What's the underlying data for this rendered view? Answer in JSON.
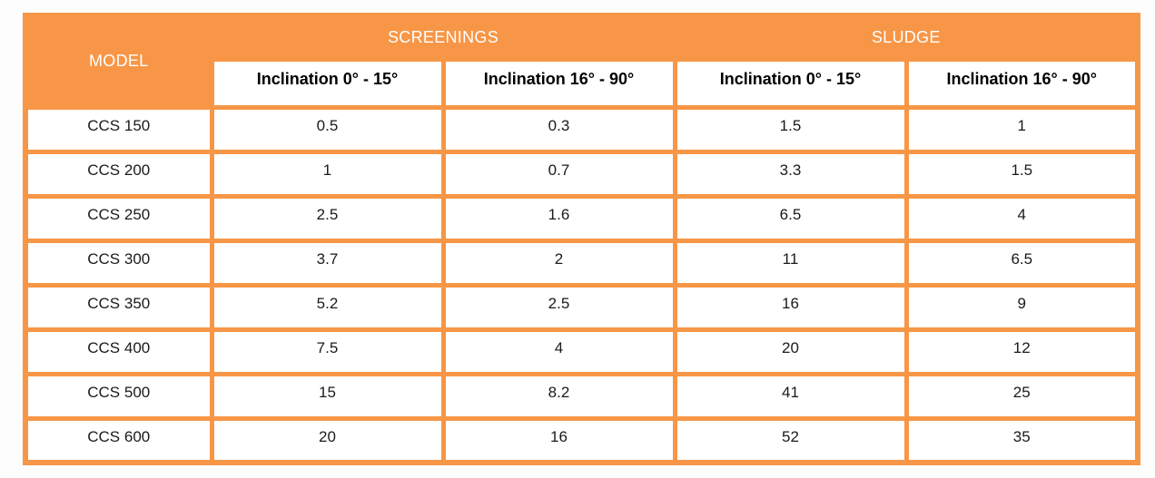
{
  "accent_color": "#F79646",
  "cell_background": "#ffffff",
  "table": {
    "model_header": "MODEL",
    "group_headers": [
      {
        "label": "SCREENINGS"
      },
      {
        "label": "SLUDGE"
      }
    ],
    "sub_headers": [
      "Inclination 0° - 15°",
      "Inclination 16° - 90°",
      "Inclination 0° - 15°",
      "Inclination 16° - 90°"
    ],
    "rows": [
      {
        "model": "CCS 150",
        "values": [
          "0.5",
          "0.3",
          "1.5",
          "1"
        ]
      },
      {
        "model": "CCS 200",
        "values": [
          "1",
          "0.7",
          "3.3",
          "1.5"
        ]
      },
      {
        "model": "CCS 250",
        "values": [
          "2.5",
          "1.6",
          "6.5",
          "4"
        ]
      },
      {
        "model": "CCS 300",
        "values": [
          "3.7",
          "2",
          "11",
          "6.5"
        ]
      },
      {
        "model": "CCS 350",
        "values": [
          "5.2",
          "2.5",
          "16",
          "9"
        ]
      },
      {
        "model": "CCS 400",
        "values": [
          "7.5",
          "4",
          "20",
          "12"
        ]
      },
      {
        "model": "CCS 500",
        "values": [
          "15",
          "8.2",
          "41",
          "25"
        ]
      },
      {
        "model": "CCS 600",
        "values": [
          "20",
          "16",
          "52",
          "35"
        ]
      }
    ]
  },
  "chart_data": {
    "type": "table",
    "title": "",
    "columns": [
      "MODEL",
      "SCREENINGS Inclination 0° - 15°",
      "SCREENINGS Inclination 16° - 90°",
      "SLUDGE Inclination 0° - 15°",
      "SLUDGE Inclination 16° - 90°"
    ],
    "rows": [
      [
        "CCS 150",
        0.5,
        0.3,
        1.5,
        1
      ],
      [
        "CCS 200",
        1,
        0.7,
        3.3,
        1.5
      ],
      [
        "CCS 250",
        2.5,
        1.6,
        6.5,
        4
      ],
      [
        "CCS 300",
        3.7,
        2,
        11,
        6.5
      ],
      [
        "CCS 350",
        5.2,
        2.5,
        16,
        9
      ],
      [
        "CCS 400",
        7.5,
        4,
        20,
        12
      ],
      [
        "CCS 500",
        15,
        8.2,
        41,
        25
      ],
      [
        "CCS 600",
        20,
        16,
        52,
        35
      ]
    ]
  }
}
